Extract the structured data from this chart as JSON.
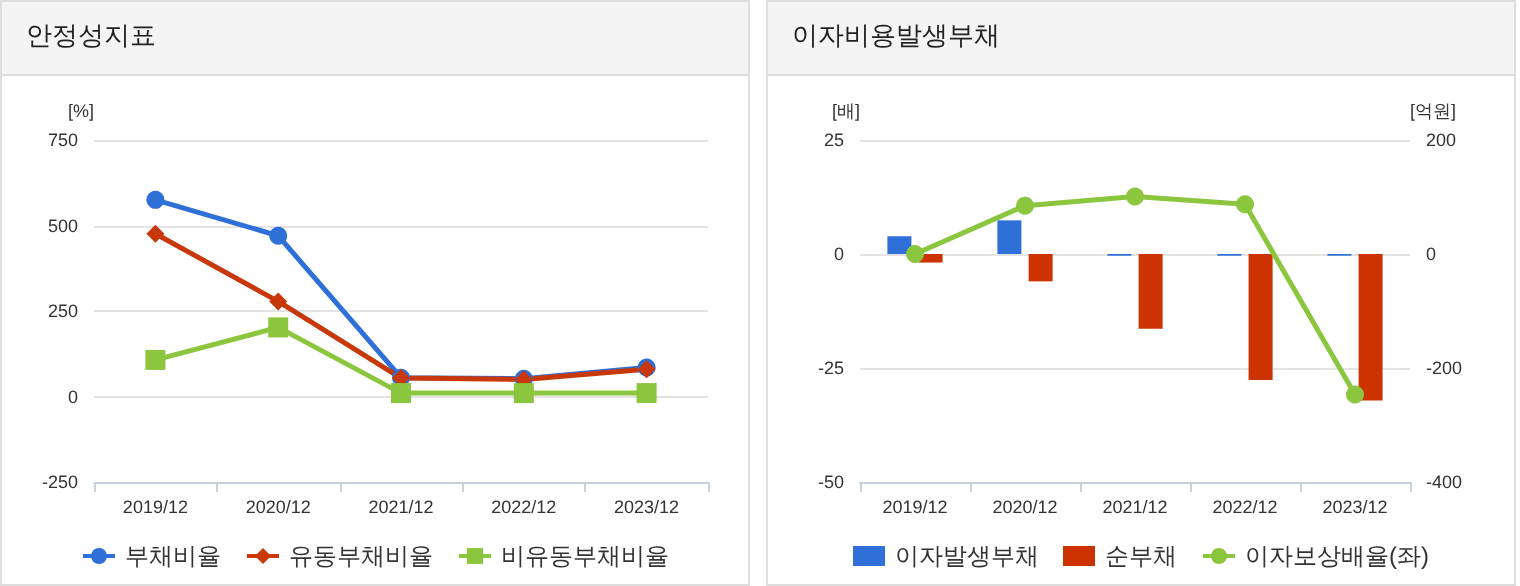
{
  "chart_data": [
    {
      "type": "line",
      "title": "안정성지표",
      "ylabel": "[%]",
      "categories": [
        "2019/12",
        "2020/12",
        "2021/12",
        "2022/12",
        "2023/12"
      ],
      "series": [
        {
          "name": "부채비율",
          "color": "#2f6fd8",
          "marker": "circle",
          "values": [
            575,
            470,
            55,
            52,
            85
          ]
        },
        {
          "name": "유동부채비율",
          "color": "#c8380a",
          "marker": "diamond",
          "values": [
            476,
            278,
            54,
            50,
            80
          ]
        },
        {
          "name": "비유동부채비율",
          "color": "#8cc63f",
          "marker": "square",
          "values": [
            107,
            202,
            10,
            10,
            10
          ]
        }
      ],
      "ylim": [
        -250,
        750
      ],
      "yticks": [
        -250,
        0,
        250,
        500,
        750
      ],
      "grid": "y",
      "legend": "bottom"
    },
    {
      "type": "bar",
      "title": "이자비용발생부채",
      "ylabel": "[배]",
      "y2label": "[억원]",
      "categories": [
        "2019/12",
        "2020/12",
        "2021/12",
        "2022/12",
        "2023/12"
      ],
      "series": [
        {
          "name": "이자발생부채",
          "color": "#2f6fd8",
          "axis": "y2",
          "values": [
            31,
            59,
            -3,
            -3,
            -3
          ]
        },
        {
          "name": "순부채",
          "color": "#cc3300",
          "axis": "y2",
          "values": [
            -15,
            -48,
            -131,
            -221,
            -257
          ]
        },
        {
          "name": "이자보상배율(좌)",
          "type": "line",
          "color": "#8cc63f",
          "marker": "circle",
          "axis": "y",
          "values": [
            0,
            10.6,
            12.6,
            10.9,
            -30.8
          ]
        }
      ],
      "ylim": [
        -50,
        25
      ],
      "yticks": [
        -50,
        -25,
        0,
        25
      ],
      "y2lim": [
        -400,
        200
      ],
      "y2ticks": [
        -400,
        -200,
        0,
        200
      ],
      "grid": "y",
      "legend": "bottom"
    }
  ]
}
